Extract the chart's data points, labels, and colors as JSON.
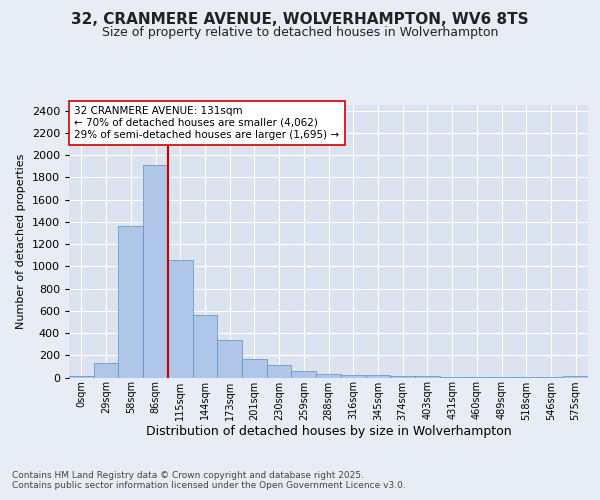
{
  "title_line1": "32, CRANMERE AVENUE, WOLVERHAMPTON, WV6 8TS",
  "title_line2": "Size of property relative to detached houses in Wolverhampton",
  "xlabel": "Distribution of detached houses by size in Wolverhampton",
  "ylabel": "Number of detached properties",
  "footnote": "Contains HM Land Registry data © Crown copyright and database right 2025.\nContains public sector information licensed under the Open Government Licence v3.0.",
  "bin_labels": [
    "0sqm",
    "29sqm",
    "58sqm",
    "86sqm",
    "115sqm",
    "144sqm",
    "173sqm",
    "201sqm",
    "230sqm",
    "259sqm",
    "288sqm",
    "316sqm",
    "345sqm",
    "374sqm",
    "403sqm",
    "431sqm",
    "460sqm",
    "489sqm",
    "518sqm",
    "546sqm",
    "575sqm"
  ],
  "bar_values": [
    10,
    130,
    1365,
    1910,
    1055,
    560,
    335,
    165,
    110,
    60,
    35,
    25,
    22,
    15,
    10,
    5,
    5,
    3,
    2,
    1,
    10
  ],
  "bar_color": "#aec6e8",
  "bar_edge_color": "#5a8fc4",
  "vline_x": 4.0,
  "vline_color": "#cc0000",
  "annotation_text": "32 CRANMERE AVENUE: 131sqm\n← 70% of detached houses are smaller (4,062)\n29% of semi-detached houses are larger (1,695) →",
  "annotation_box_color": "#ffffff",
  "annotation_box_edge": "#cc0000",
  "ylim": [
    0,
    2450
  ],
  "yticks": [
    0,
    200,
    400,
    600,
    800,
    1000,
    1200,
    1400,
    1600,
    1800,
    2000,
    2200,
    2400
  ],
  "background_color": "#e8ecf5",
  "plot_bg_color": "#dce3f0",
  "title_fontsize": 11,
  "subtitle_fontsize": 9,
  "ylabel_fontsize": 8,
  "xlabel_fontsize": 9,
  "tick_fontsize": 7,
  "footnote_fontsize": 6.5,
  "annotation_fontsize": 7.5
}
